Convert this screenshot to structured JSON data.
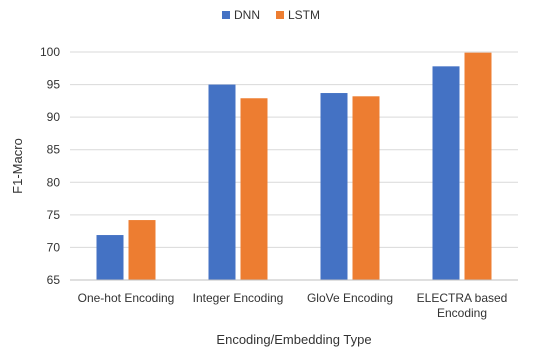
{
  "chart_data": {
    "type": "bar",
    "categories": [
      "One-hot Encoding",
      "Integer Encoding",
      "GloVe Encoding",
      "ELECTRA based Encoding"
    ],
    "category_lines": [
      [
        "One-hot Encoding"
      ],
      [
        "Integer Encoding"
      ],
      [
        "GloVe Encoding"
      ],
      [
        "ELECTRA based",
        "Encoding"
      ]
    ],
    "series": [
      {
        "name": "DNN",
        "values": [
          71.9,
          95.0,
          93.7,
          97.8
        ],
        "color": "#4472C4"
      },
      {
        "name": "LSTM",
        "values": [
          74.2,
          92.9,
          93.2,
          99.9
        ],
        "color": "#ED7D31"
      }
    ],
    "title": "",
    "xlabel": "Encoding/Embedding Type",
    "ylabel": "F1-Macro",
    "ylim": [
      65,
      100
    ],
    "yticks": [
      65,
      70,
      75,
      80,
      85,
      90,
      95,
      100
    ],
    "ytick_labels": [
      "65",
      "70",
      "75",
      "80",
      "85",
      "90",
      "95",
      "100"
    ],
    "grid": true,
    "legend_position": "top-center"
  }
}
